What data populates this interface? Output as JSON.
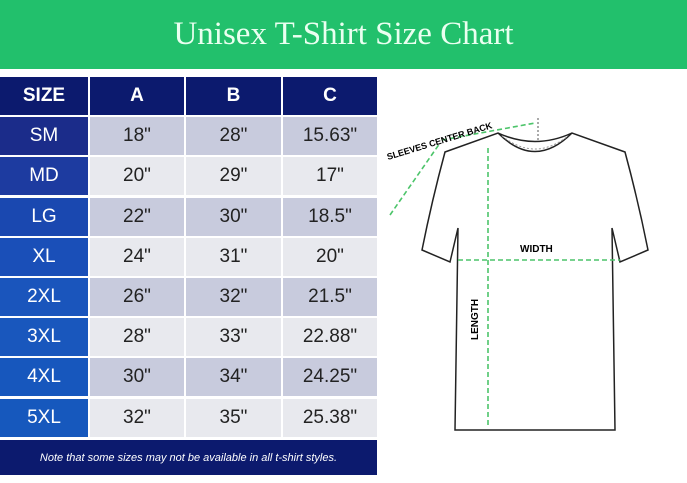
{
  "title": "Unisex T-Shirt Size Chart",
  "table": {
    "headers": [
      "SIZE",
      "A",
      "B",
      "C"
    ],
    "rows": [
      [
        "SM",
        "18\"",
        "28\"",
        "15.63\""
      ],
      [
        "MD",
        "20\"",
        "29\"",
        "17\""
      ],
      [
        "LG",
        "22\"",
        "30\"",
        "18.5\""
      ],
      [
        "XL",
        "24\"",
        "31\"",
        "20\""
      ],
      [
        "2XL",
        "26\"",
        "32\"",
        "21.5\""
      ],
      [
        "3XL",
        "28\"",
        "33\"",
        "22.88\""
      ],
      [
        "4XL",
        "30\"",
        "34\"",
        "24.25\""
      ],
      [
        "5XL",
        "32\"",
        "35\"",
        "25.38\""
      ]
    ]
  },
  "note": "Note that some sizes may not be available in all t-shirt styles.",
  "diagram": {
    "sleeves": "SLEEVES CENTER BACK",
    "width": "WIDTH",
    "length": "LENGTH"
  },
  "colors": {
    "banner": "#22c06c",
    "header": "#0c1a6e",
    "measure": "#4cc46a"
  }
}
